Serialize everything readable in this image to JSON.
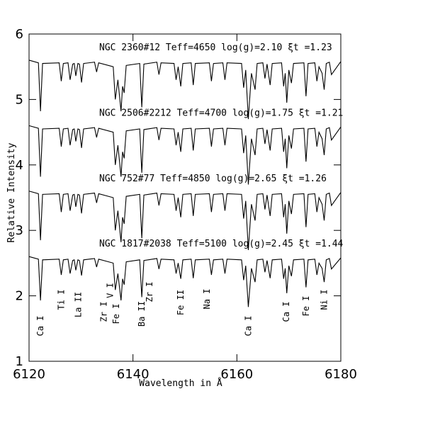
{
  "chart_data": {
    "type": "line",
    "xlabel": "Wavelength in Å",
    "ylabel": "Relative Intensity",
    "xlim": [
      6120,
      6180
    ],
    "xticks": [
      6120,
      6140,
      6160,
      6180
    ],
    "ylim": [
      1,
      6
    ],
    "yticks": [
      1,
      2,
      3,
      4,
      5,
      6
    ],
    "x": [
      6120,
      6121.8,
      6122.2,
      6122.6,
      6125.8,
      6126.2,
      6126.6,
      6127.5,
      6127.9,
      6128.4,
      6128.7,
      6129.0,
      6129.4,
      6129.7,
      6130.1,
      6130.5,
      6132.6,
      6133.0,
      6133.4,
      6136.2,
      6136.6,
      6137.1,
      6137.7,
      6138.0,
      6138.3,
      6138.7,
      6141.3,
      6141.7,
      6142.1,
      6144.6,
      6145.0,
      6145.4,
      6147.9,
      6148.3,
      6148.7,
      6149.2,
      6149.6,
      6151.2,
      6151.6,
      6152.0,
      6154.7,
      6155.1,
      6155.5,
      6157.3,
      6157.7,
      6158.1,
      6160.9,
      6161.3,
      6161.7,
      6162.2,
      6162.8,
      6163.5,
      6163.9,
      6165.0,
      6165.4,
      6165.8,
      6166.4,
      6166.8,
      6168.6,
      6169.0,
      6169.3,
      6169.6,
      6170.0,
      6170.5,
      6170.9,
      6172.9,
      6173.3,
      6173.7,
      6175.0,
      6175.4,
      6175.8,
      6176.4,
      6176.8,
      6177.2,
      6177.8,
      6178.2,
      6180
    ],
    "series": [
      {
        "name": "NGC 2360#12  Teff=4650  log(g)=2.10  ξt =1.23",
        "color": "#000000",
        "values": [
          5.6,
          5.56,
          4.82,
          5.55,
          5.56,
          5.28,
          5.55,
          5.56,
          5.3,
          5.54,
          5.55,
          5.36,
          5.55,
          5.54,
          5.26,
          5.55,
          5.57,
          5.42,
          5.56,
          5.5,
          5.0,
          5.3,
          4.82,
          5.2,
          5.1,
          5.52,
          5.55,
          4.88,
          5.54,
          5.57,
          5.38,
          5.56,
          5.55,
          5.3,
          5.5,
          5.2,
          5.55,
          5.56,
          5.22,
          5.55,
          5.56,
          5.28,
          5.55,
          5.56,
          5.3,
          5.56,
          5.55,
          5.18,
          5.45,
          4.7,
          5.4,
          5.15,
          5.55,
          5.56,
          5.32,
          5.54,
          5.22,
          5.55,
          5.56,
          5.2,
          5.4,
          4.95,
          5.45,
          5.25,
          5.55,
          5.56,
          5.05,
          5.55,
          5.56,
          5.28,
          5.5,
          5.4,
          5.15,
          5.55,
          5.57,
          5.38,
          5.58
        ]
      },
      {
        "name": "NGC 2506#2212  Teff=4700 log(g)=1.75  ξt =1.21",
        "color": "#000000",
        "values": [
          4.6,
          4.56,
          3.82,
          4.55,
          4.56,
          4.28,
          4.55,
          4.56,
          4.3,
          4.54,
          4.55,
          4.36,
          4.55,
          4.54,
          4.26,
          4.55,
          4.57,
          4.42,
          4.56,
          4.5,
          4.0,
          4.3,
          3.82,
          4.2,
          4.1,
          4.52,
          4.55,
          3.88,
          4.54,
          4.57,
          4.38,
          4.56,
          4.55,
          4.3,
          4.5,
          4.2,
          4.55,
          4.56,
          4.22,
          4.55,
          4.56,
          4.28,
          4.55,
          4.56,
          4.3,
          4.56,
          4.55,
          4.18,
          4.45,
          3.7,
          4.4,
          4.15,
          4.55,
          4.56,
          4.32,
          4.54,
          4.22,
          4.55,
          4.56,
          4.2,
          4.4,
          3.95,
          4.45,
          4.25,
          4.55,
          4.56,
          4.05,
          4.55,
          4.56,
          4.28,
          4.5,
          4.4,
          4.15,
          4.55,
          4.57,
          4.38,
          4.58
        ]
      },
      {
        "name": "NGC 752#77   Teff=4850 log(g)=2.65  ξt =1.26",
        "color": "#000000",
        "values": [
          3.6,
          3.56,
          2.85,
          3.55,
          3.56,
          3.28,
          3.55,
          3.56,
          3.3,
          3.54,
          3.55,
          3.36,
          3.55,
          3.54,
          3.26,
          3.55,
          3.57,
          3.42,
          3.56,
          3.5,
          3.0,
          3.3,
          2.82,
          3.2,
          3.1,
          3.52,
          3.55,
          2.88,
          3.54,
          3.57,
          3.38,
          3.56,
          3.55,
          3.3,
          3.5,
          3.2,
          3.55,
          3.56,
          3.22,
          3.55,
          3.56,
          3.28,
          3.55,
          3.56,
          3.3,
          3.56,
          3.55,
          3.18,
          3.45,
          2.7,
          3.4,
          3.15,
          3.55,
          3.56,
          3.32,
          3.54,
          3.22,
          3.55,
          3.56,
          3.2,
          3.4,
          2.95,
          3.45,
          3.25,
          3.55,
          3.56,
          3.05,
          3.55,
          3.56,
          3.28,
          3.5,
          3.4,
          3.15,
          3.55,
          3.57,
          3.38,
          3.58
        ]
      },
      {
        "name": "NGC 1817#2038  Teff=5100 log(g)=2.45  ξt =1.44",
        "color": "#000000",
        "values": [
          2.6,
          2.56,
          1.93,
          2.55,
          2.56,
          2.32,
          2.55,
          2.56,
          2.34,
          2.54,
          2.55,
          2.39,
          2.55,
          2.54,
          2.31,
          2.55,
          2.57,
          2.44,
          2.56,
          2.5,
          2.09,
          2.34,
          1.93,
          2.26,
          2.17,
          2.52,
          2.55,
          1.98,
          2.54,
          2.57,
          2.41,
          2.56,
          2.55,
          2.34,
          2.5,
          2.26,
          2.55,
          2.56,
          2.27,
          2.55,
          2.56,
          2.32,
          2.55,
          2.56,
          2.34,
          2.56,
          2.55,
          2.24,
          2.46,
          1.83,
          2.42,
          2.21,
          2.55,
          2.56,
          2.36,
          2.54,
          2.27,
          2.55,
          2.56,
          2.26,
          2.42,
          2.04,
          2.46,
          2.3,
          2.55,
          2.56,
          2.13,
          2.55,
          2.56,
          2.32,
          2.5,
          2.42,
          2.21,
          2.55,
          2.57,
          2.41,
          2.58
        ]
      }
    ],
    "annotations": [
      {
        "x": 6122.2,
        "text": "Ca I"
      },
      {
        "x": 6126.2,
        "text": "Ti I"
      },
      {
        "x": 6129.5,
        "text": "La II"
      },
      {
        "x": 6134.4,
        "text": "Zr I"
      },
      {
        "x": 6135.6,
        "text": "V I"
      },
      {
        "x": 6136.8,
        "text": "Fe I"
      },
      {
        "x": 6141.7,
        "text": "Ba II"
      },
      {
        "x": 6143.2,
        "text": "Zr I"
      },
      {
        "x": 6149.2,
        "text": "Fe II"
      },
      {
        "x": 6154.2,
        "text": "Na I"
      },
      {
        "x": 6162.2,
        "text": "Ca I"
      },
      {
        "x": 6169.5,
        "text": "Ca I"
      },
      {
        "x": 6173.3,
        "text": "Fe I"
      },
      {
        "x": 6176.8,
        "text": "Ni I"
      }
    ]
  }
}
